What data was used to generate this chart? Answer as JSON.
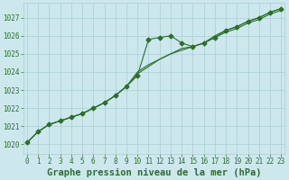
{
  "title": "Graphe pression niveau de la mer (hPa)",
  "xlabel_hours": [
    0,
    1,
    2,
    3,
    4,
    5,
    6,
    7,
    8,
    9,
    10,
    11,
    12,
    13,
    14,
    15,
    16,
    17,
    18,
    19,
    20,
    21,
    22,
    23
  ],
  "series1": [
    1020.1,
    1020.7,
    1021.1,
    1021.3,
    1021.5,
    1021.7,
    1022.0,
    1022.3,
    1022.7,
    1023.2,
    1023.8,
    1025.8,
    1025.9,
    1026.0,
    1025.6,
    1025.4,
    1025.6,
    1025.9,
    1026.3,
    1026.5,
    1026.8,
    1027.0,
    1027.3,
    1027.5
  ],
  "series2": [
    1020.1,
    1020.7,
    1021.1,
    1021.3,
    1021.5,
    1021.7,
    1022.0,
    1022.3,
    1022.7,
    1023.2,
    1023.9,
    1024.3,
    1024.7,
    1025.0,
    1025.3,
    1025.4,
    1025.6,
    1025.9,
    1026.2,
    1026.4,
    1026.7,
    1026.9,
    1027.2,
    1027.4
  ],
  "series3": [
    1020.1,
    1020.7,
    1021.1,
    1021.3,
    1021.5,
    1021.7,
    1022.0,
    1022.3,
    1022.7,
    1023.2,
    1024.0,
    1024.4,
    1024.7,
    1025.0,
    1025.2,
    1025.4,
    1025.6,
    1026.0,
    1026.3,
    1026.5,
    1026.8,
    1027.0,
    1027.3,
    1027.5
  ],
  "line_color": "#2d6e2d",
  "bg_color": "#cce8ec",
  "grid_color": "#aacdd2",
  "ylim": [
    1019.5,
    1027.8
  ],
  "yticks": [
    1020,
    1021,
    1022,
    1023,
    1024,
    1025,
    1026,
    1027
  ],
  "title_fontsize": 7.5,
  "tick_fontsize": 5.5
}
